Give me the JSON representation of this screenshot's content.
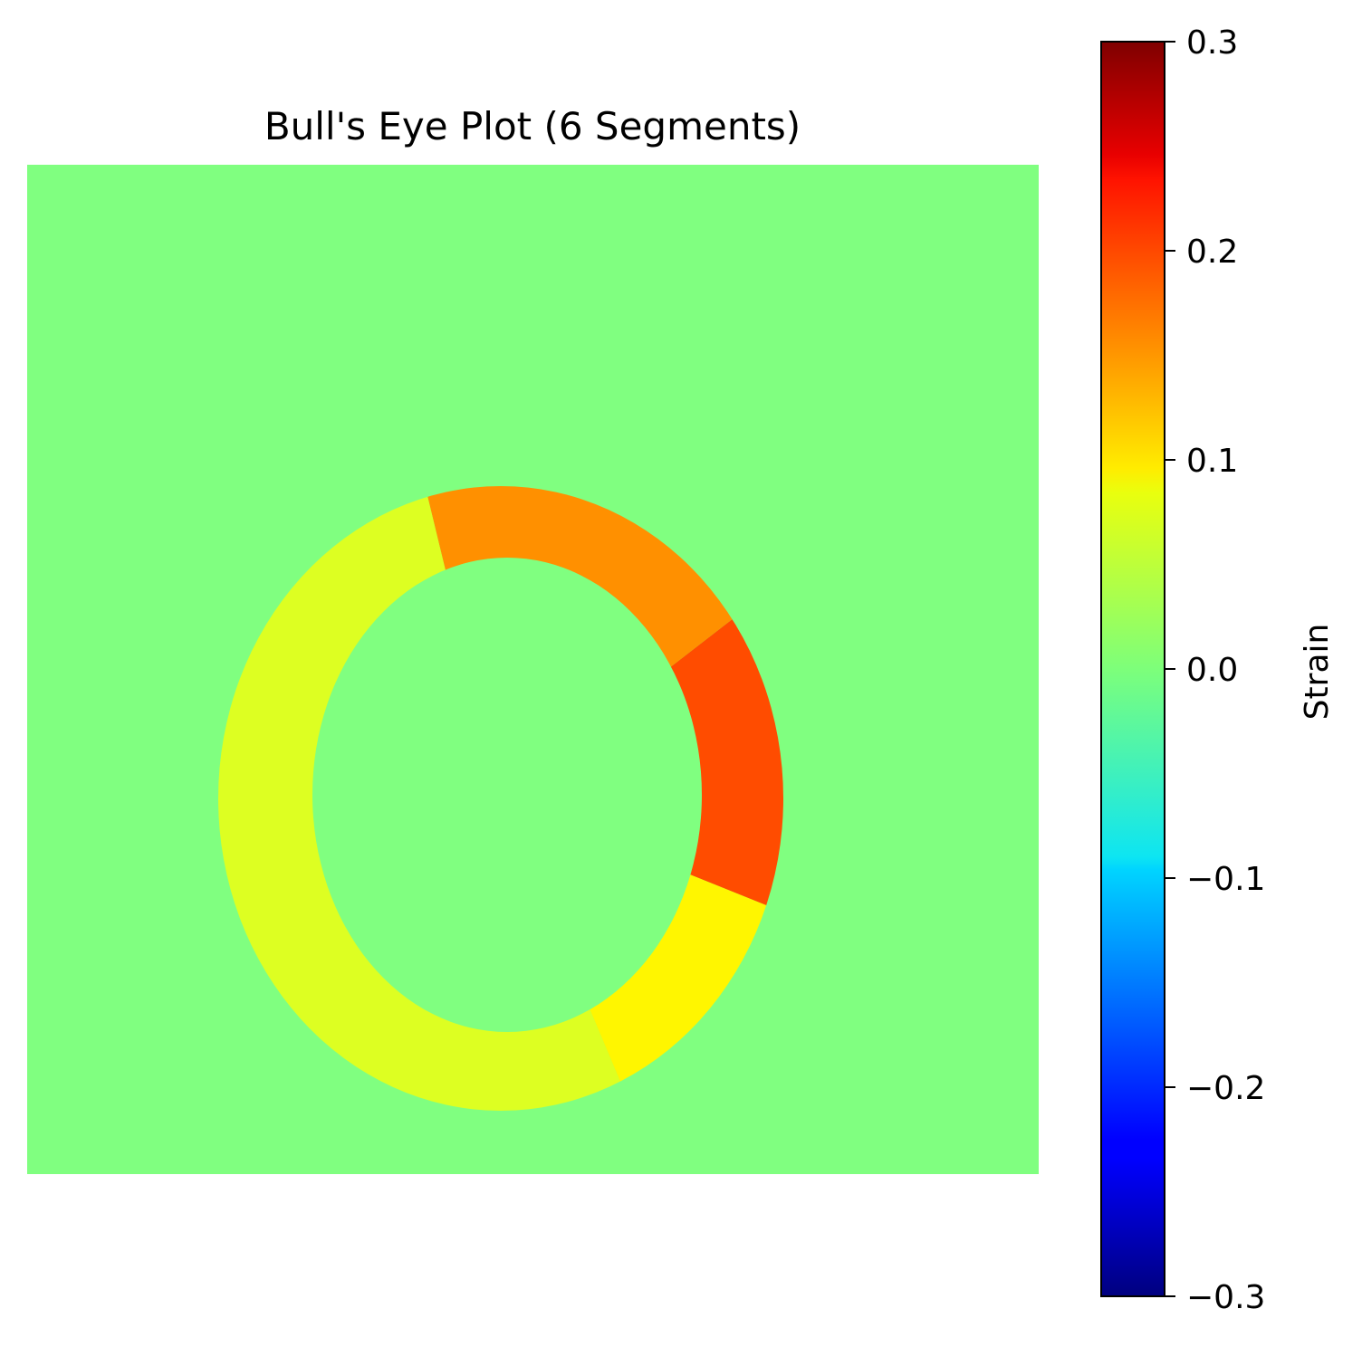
{
  "chart_data": {
    "type": "heatmap",
    "title": "Bull's Eye Plot (6 Segments)",
    "background_value": 0.0,
    "segments": [
      {
        "angle_start": -20,
        "angle_end": 35,
        "value": 0.18
      },
      {
        "angle_start": 35,
        "angle_end": 105,
        "value": 0.14
      },
      {
        "angle_start": 105,
        "angle_end": 180,
        "value": 0.055
      },
      {
        "angle_start": 180,
        "angle_end": 270,
        "value": 0.055
      },
      {
        "angle_start": 270,
        "angle_end": 295,
        "value": 0.055
      },
      {
        "angle_start": 295,
        "angle_end": 340,
        "value": 0.08
      }
    ],
    "colorbar": {
      "label": "Strain",
      "vmin": -0.3,
      "vmax": 0.3,
      "colormap": "jet",
      "ticks": [
        {
          "value": 0.3,
          "label": "0.3"
        },
        {
          "value": 0.2,
          "label": "0.2"
        },
        {
          "value": 0.1,
          "label": "0.1"
        },
        {
          "value": 0.0,
          "label": "0.0"
        },
        {
          "value": -0.1,
          "label": "−0.1"
        },
        {
          "value": -0.2,
          "label": "−0.2"
        },
        {
          "value": -0.3,
          "label": "−0.3"
        }
      ]
    },
    "axis_visible": false,
    "grid": false
  }
}
